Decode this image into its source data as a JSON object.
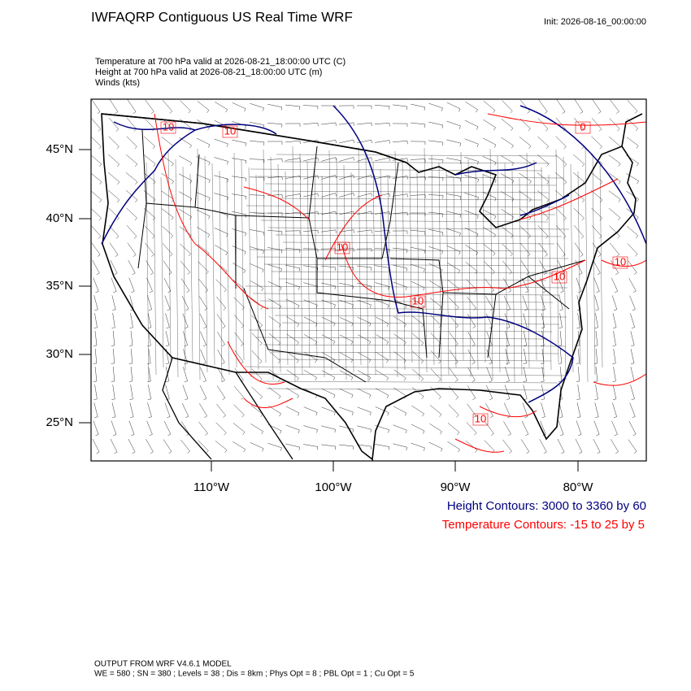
{
  "header": {
    "title": "IWFAQRP Contiguous US Real Time WRF",
    "init": "Init: 2026-08-16_00:00:00"
  },
  "fields": [
    "Temperature at 700 hPa valid at 2026-08-21_18:00:00 UTC   (C)",
    "Height at 700 hPa valid at 2026-08-21_18:00:00 UTC   (m)",
    "Winds   (kts)"
  ],
  "map": {
    "lat_labels": [
      "45°N",
      "40°N",
      "35°N",
      "30°N",
      "25°N"
    ],
    "lon_labels": [
      "110°W",
      "100°W",
      "90°W",
      "80°W"
    ],
    "contour_labels": [
      "10",
      "10",
      "0",
      "10",
      "10",
      "10",
      "10",
      "10"
    ]
  },
  "legend": [
    "Height Contours: 3000 to 3360 by 60",
    "Temperature Contours: -15 to 25 by 5"
  ],
  "footer": [
    "OUTPUT FROM WRF V4.6.1 MODEL",
    "WE = 580 ; SN = 380 ; Levels = 38 ; Dis = 8km ; Phys Opt = 8 ; PBL Opt = 1 ; Cu Opt = 5"
  ]
}
